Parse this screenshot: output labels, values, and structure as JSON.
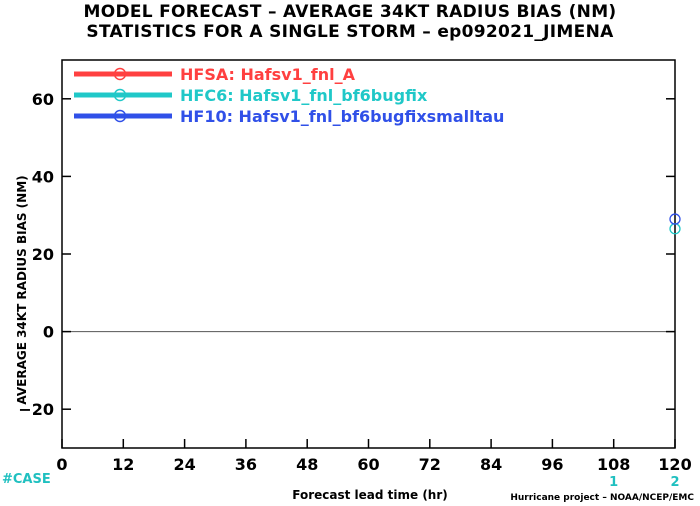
{
  "title": {
    "line1": "MODEL FORECAST – AVERAGE 34KT RADIUS BIAS (NM)",
    "line2": "STATISTICS FOR A SINGLE STORM – ep092021_JIMENA"
  },
  "credit": "Hurricane project – NOAA/NCEP/EMC",
  "case_label": "#CASE",
  "colors": {
    "HFSA": "#ff4040",
    "HFC6": "#20c8c8",
    "HF10": "#3050e8",
    "case": "#20c0c0"
  },
  "chart_data": {
    "type": "line",
    "title": "MODEL FORECAST – AVERAGE 34KT RADIUS BIAS (NM)",
    "subtitle": "STATISTICS FOR A SINGLE STORM – ep092021_JIMENA",
    "xlabel": "Forecast lead time (hr)",
    "ylabel": "AVERAGE 34KT RADIUS BIAS (NM)",
    "xlim": [
      0,
      120
    ],
    "ylim": [
      -30,
      70
    ],
    "xticks": [
      0,
      12,
      24,
      36,
      48,
      60,
      72,
      84,
      96,
      108,
      120
    ],
    "yticks": [
      -20,
      0,
      20,
      40,
      60
    ],
    "grid": false,
    "legend": "top-left",
    "series": [
      {
        "name": "HFSA: Hafsv1_fnl_A",
        "x": [
          120
        ],
        "y": [
          null
        ]
      },
      {
        "name": "HFC6: Hafsv1_fnl_bf6bugfix",
        "x": [
          120
        ],
        "y": [
          26.5
        ]
      },
      {
        "name": "HF10: Hafsv1_fnl_bf6bugfixsmalltau",
        "x": [
          120
        ],
        "y": [
          29
        ]
      }
    ],
    "case_counts": [
      {
        "x": 108,
        "count": "1"
      },
      {
        "x": 120,
        "count": "2"
      }
    ]
  }
}
